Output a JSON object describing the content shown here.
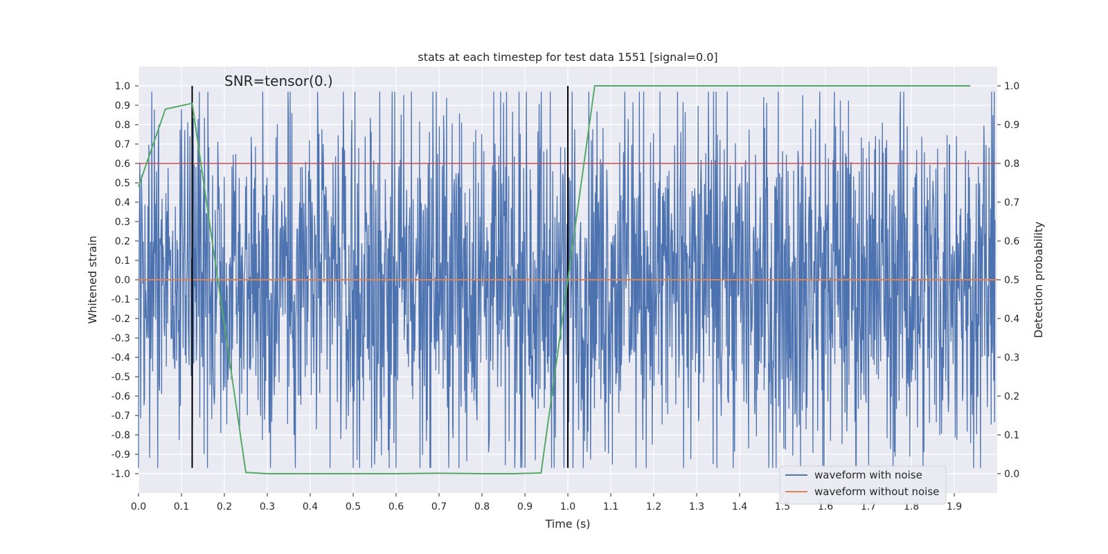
{
  "chart_data": {
    "type": "line",
    "title": "stats at each timestep for test data 1551 [signal=0.0]",
    "annotation": "SNR=tensor(0.)",
    "xlabel": "Time (s)",
    "ylabel": "Whitened strain",
    "y2label": "Detection probability",
    "xlim": [
      0.0,
      2.0
    ],
    "ylim": [
      -1.1,
      1.1
    ],
    "y2lim": [
      -0.05,
      1.05
    ],
    "x_ticks": [
      "0.0",
      "0.1",
      "0.2",
      "0.3",
      "0.4",
      "0.5",
      "0.6",
      "0.7",
      "0.8",
      "0.9",
      "1.0",
      "1.1",
      "1.2",
      "1.3",
      "1.4",
      "1.5",
      "1.6",
      "1.7",
      "1.8",
      "1.9"
    ],
    "y_ticks": [
      "1.0",
      "0.9",
      "0.8",
      "0.7",
      "0.6",
      "0.5",
      "0.4",
      "0.3",
      "0.2",
      "0.1",
      "0.0",
      "-0.1",
      "-0.2",
      "-0.3",
      "-0.4",
      "-0.5",
      "-0.6",
      "-0.7",
      "-0.8",
      "-0.9",
      "-1.0"
    ],
    "y2_ticks": [
      "1.0",
      "0.9",
      "0.8",
      "0.7",
      "0.6",
      "0.5",
      "0.4",
      "0.3",
      "0.2",
      "0.1",
      "0.0"
    ],
    "grid": true,
    "legend_position": "bottom-right",
    "series": [
      {
        "name": "waveform with noise",
        "color": "#4c72b0",
        "axis": "left",
        "style": "dense-noise",
        "approx_range": [
          -0.97,
          0.97
        ]
      },
      {
        "name": "waveform without noise",
        "color": "#dd8452",
        "axis": "left",
        "x": [
          0.0,
          2.0
        ],
        "y": [
          0.0,
          0.0
        ]
      },
      {
        "name": "",
        "color": "#55a868",
        "axis": "right",
        "x": [
          0.0,
          0.0625,
          0.125,
          0.25,
          0.3,
          0.4,
          0.5,
          0.6,
          0.7,
          0.8,
          0.875,
          0.9375,
          1.0625,
          1.25,
          1.5,
          1.75,
          1.9375
        ],
        "y": [
          0.74,
          0.94,
          0.955,
          0.003,
          0.0,
          0.0,
          0.0,
          0.0,
          0.001,
          0.0,
          0.0,
          0.002,
          1.0,
          1.0,
          1.0,
          1.0,
          1.0
        ]
      }
    ],
    "threshold": {
      "y": 0.8,
      "color": "#c44e52"
    },
    "markers": {
      "x": [
        0.125,
        1.0
      ],
      "color": "#000000",
      "y_range": [
        -0.97,
        1.0
      ]
    }
  }
}
